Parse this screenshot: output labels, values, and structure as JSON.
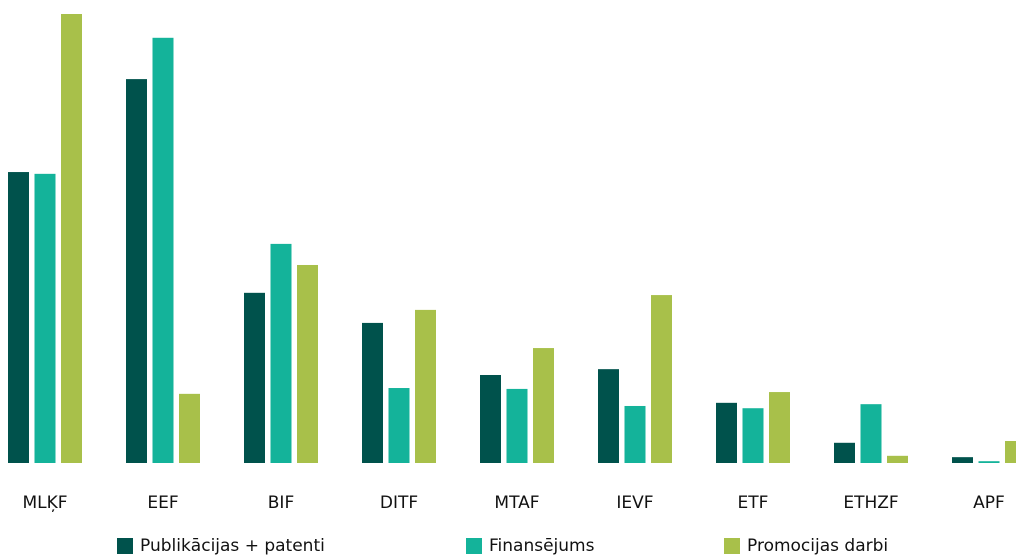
{
  "chart_data": {
    "type": "bar",
    "categories": [
      "MLĶF",
      "EEF",
      "BIF",
      "DITF",
      "MTAF",
      "IEVF",
      "ETF",
      "ETHZF",
      "APF"
    ],
    "series": [
      {
        "name": "Publikācijas + patenti",
        "color": "#00524c",
        "values": [
          64.8,
          85.5,
          37.9,
          31.2,
          19.6,
          20.9,
          13.4,
          4.5,
          1.3
        ]
      },
      {
        "name": "Finansējums",
        "color": "#14b39a",
        "values": [
          64.4,
          94.7,
          48.8,
          16.7,
          16.5,
          12.7,
          12.2,
          13.1,
          0.4
        ]
      },
      {
        "name": "Promocijas darbi",
        "color": "#a8c04a",
        "values": [
          100,
          15.4,
          44.1,
          34.1,
          25.6,
          37.4,
          15.8,
          1.6,
          4.9
        ]
      }
    ],
    "ylim": [
      0,
      100
    ]
  }
}
